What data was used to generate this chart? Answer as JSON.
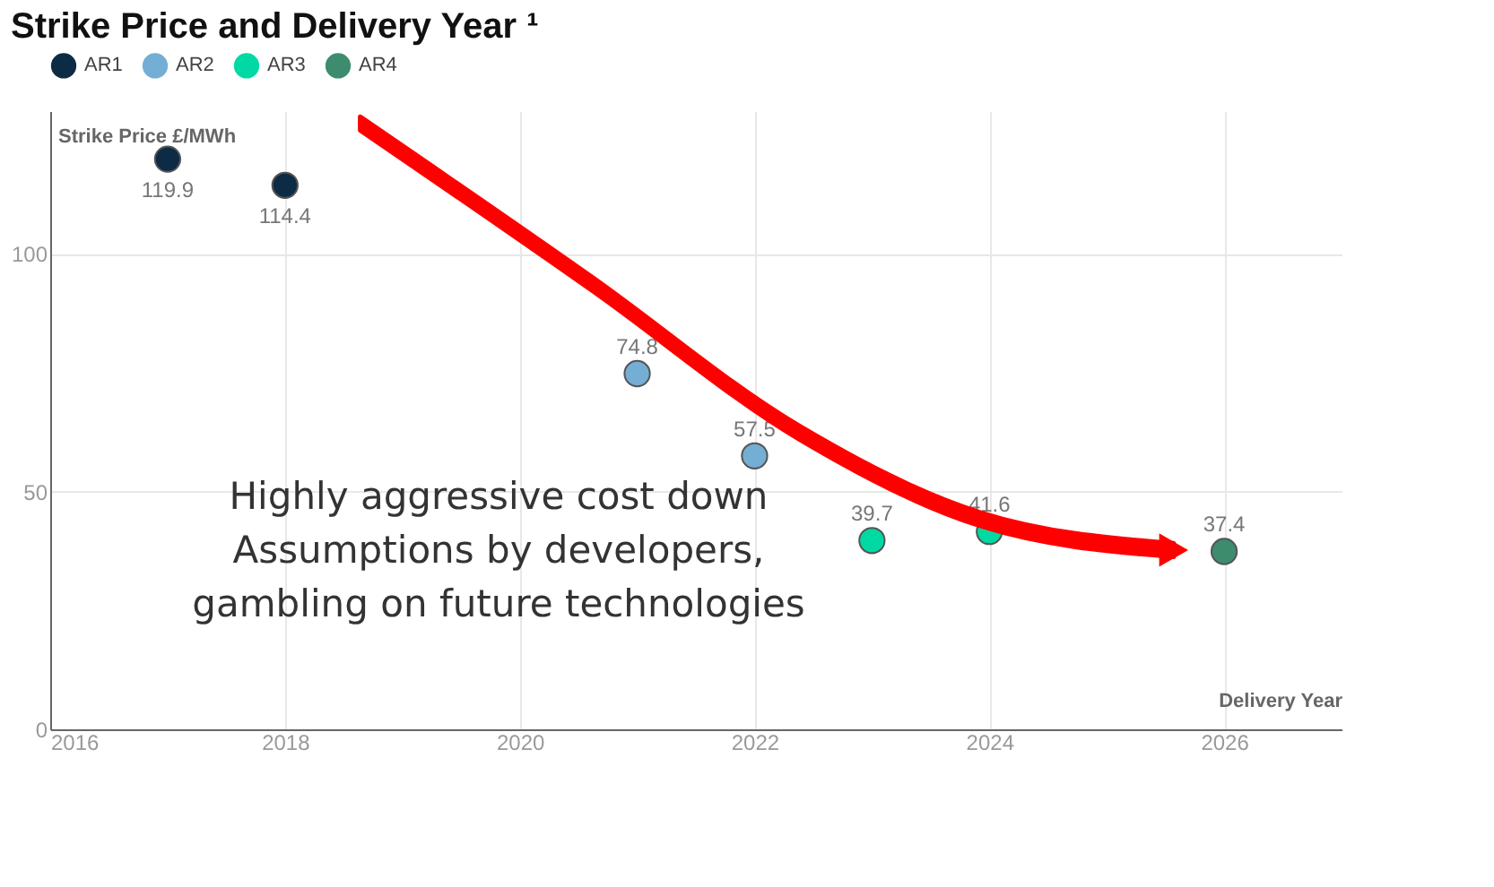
{
  "chart_data": {
    "type": "scatter",
    "title": "Strike Price and Delivery Year ¹",
    "xlabel": "Delivery Year",
    "ylabel": "Strike Price £/MWh",
    "series": [
      {
        "name": "AR1",
        "color": "#0d2b45",
        "x": [
          2017,
          2018
        ],
        "values": [
          119.9,
          114.4
        ]
      },
      {
        "name": "AR2",
        "color": "#74aed4",
        "x": [
          2021,
          2022
        ],
        "values": [
          74.8,
          57.5
        ]
      },
      {
        "name": "AR3",
        "color": "#00d9a3",
        "x": [
          2023,
          2024
        ],
        "values": [
          39.7,
          41.6
        ]
      },
      {
        "name": "AR4",
        "color": "#3d8c6e",
        "x": [
          2026
        ],
        "values": [
          37.4
        ]
      }
    ],
    "xlim": [
      2016,
      2027
    ],
    "xticks": [
      2016,
      2018,
      2020,
      2022,
      2024,
      2026
    ],
    "ylim": [
      0,
      130
    ],
    "yticks": [
      0,
      50,
      100
    ],
    "data_labels": true,
    "grid": true,
    "legend": "top left",
    "marker": "circle",
    "annotations": [
      "Highly aggressive cost down\nAssumptions by developers,\ngambling on future technologies"
    ]
  }
}
